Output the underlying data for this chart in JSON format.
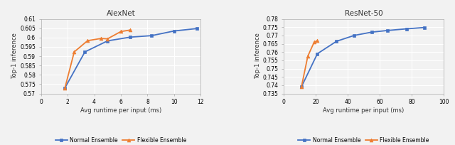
{
  "alexnet": {
    "title": "AlexNet",
    "xlabel": "Avg runtime per input (ms)",
    "ylabel": "Top-1 inference",
    "xlim": [
      0,
      12
    ],
    "ylim": [
      0.57,
      0.61
    ],
    "yticks": [
      0.57,
      0.575,
      0.58,
      0.585,
      0.59,
      0.595,
      0.6,
      0.605,
      0.61
    ],
    "ytick_labels": [
      "0.57",
      "0.575",
      "0.58",
      "0.585",
      "0.59",
      "0.595",
      "0.6",
      "0.605",
      "0.61"
    ],
    "xticks": [
      0,
      2,
      4,
      6,
      8,
      10,
      12
    ],
    "normal": {
      "x": [
        1.8,
        3.3,
        5.0,
        6.7,
        8.3,
        10.0,
        11.7
      ],
      "y": [
        0.573,
        0.5923,
        0.5982,
        0.6002,
        0.601,
        0.6035,
        0.6048
      ],
      "color": "#4472c4",
      "marker": "s"
    },
    "flexible": {
      "x": [
        1.8,
        2.5,
        3.5,
        4.5,
        5.0,
        6.0,
        6.7
      ],
      "y": [
        0.573,
        0.5923,
        0.5983,
        0.5995,
        0.5993,
        0.6032,
        0.604
      ],
      "color": "#ed7d31",
      "marker": "^"
    }
  },
  "resnet50": {
    "title": "ResNet-50",
    "xlabel": "Avg runtime per input (ms)",
    "ylabel": "Top-1 inference",
    "xlim": [
      0,
      100
    ],
    "ylim": [
      0.735,
      0.78
    ],
    "yticks": [
      0.735,
      0.74,
      0.745,
      0.75,
      0.755,
      0.76,
      0.765,
      0.77,
      0.775,
      0.78
    ],
    "ytick_labels": [
      "0.735",
      "0.74",
      "0.745",
      "0.75",
      "0.755",
      "0.76",
      "0.765",
      "0.77",
      "0.775",
      "0.78"
    ],
    "xticks": [
      0,
      20,
      40,
      60,
      80,
      100
    ],
    "normal": {
      "x": [
        11.0,
        21.0,
        33.0,
        44.0,
        55.0,
        65.0,
        77.0,
        88.0
      ],
      "y": [
        0.739,
        0.759,
        0.7665,
        0.77,
        0.772,
        0.773,
        0.774,
        0.7748
      ],
      "color": "#4472c4",
      "marker": "s"
    },
    "flexible": {
      "x": [
        11.0,
        15.0,
        19.0,
        21.0
      ],
      "y": [
        0.739,
        0.7575,
        0.766,
        0.7668
      ],
      "color": "#ed7d31",
      "marker": "^"
    }
  },
  "legend_normal": "Normal Ensemble",
  "legend_flexible": "Flexible Ensemble",
  "background_color": "#f2f2f2",
  "plot_bg_color": "#f2f2f2",
  "grid_color": "#ffffff",
  "spine_color": "#aaaaaa"
}
